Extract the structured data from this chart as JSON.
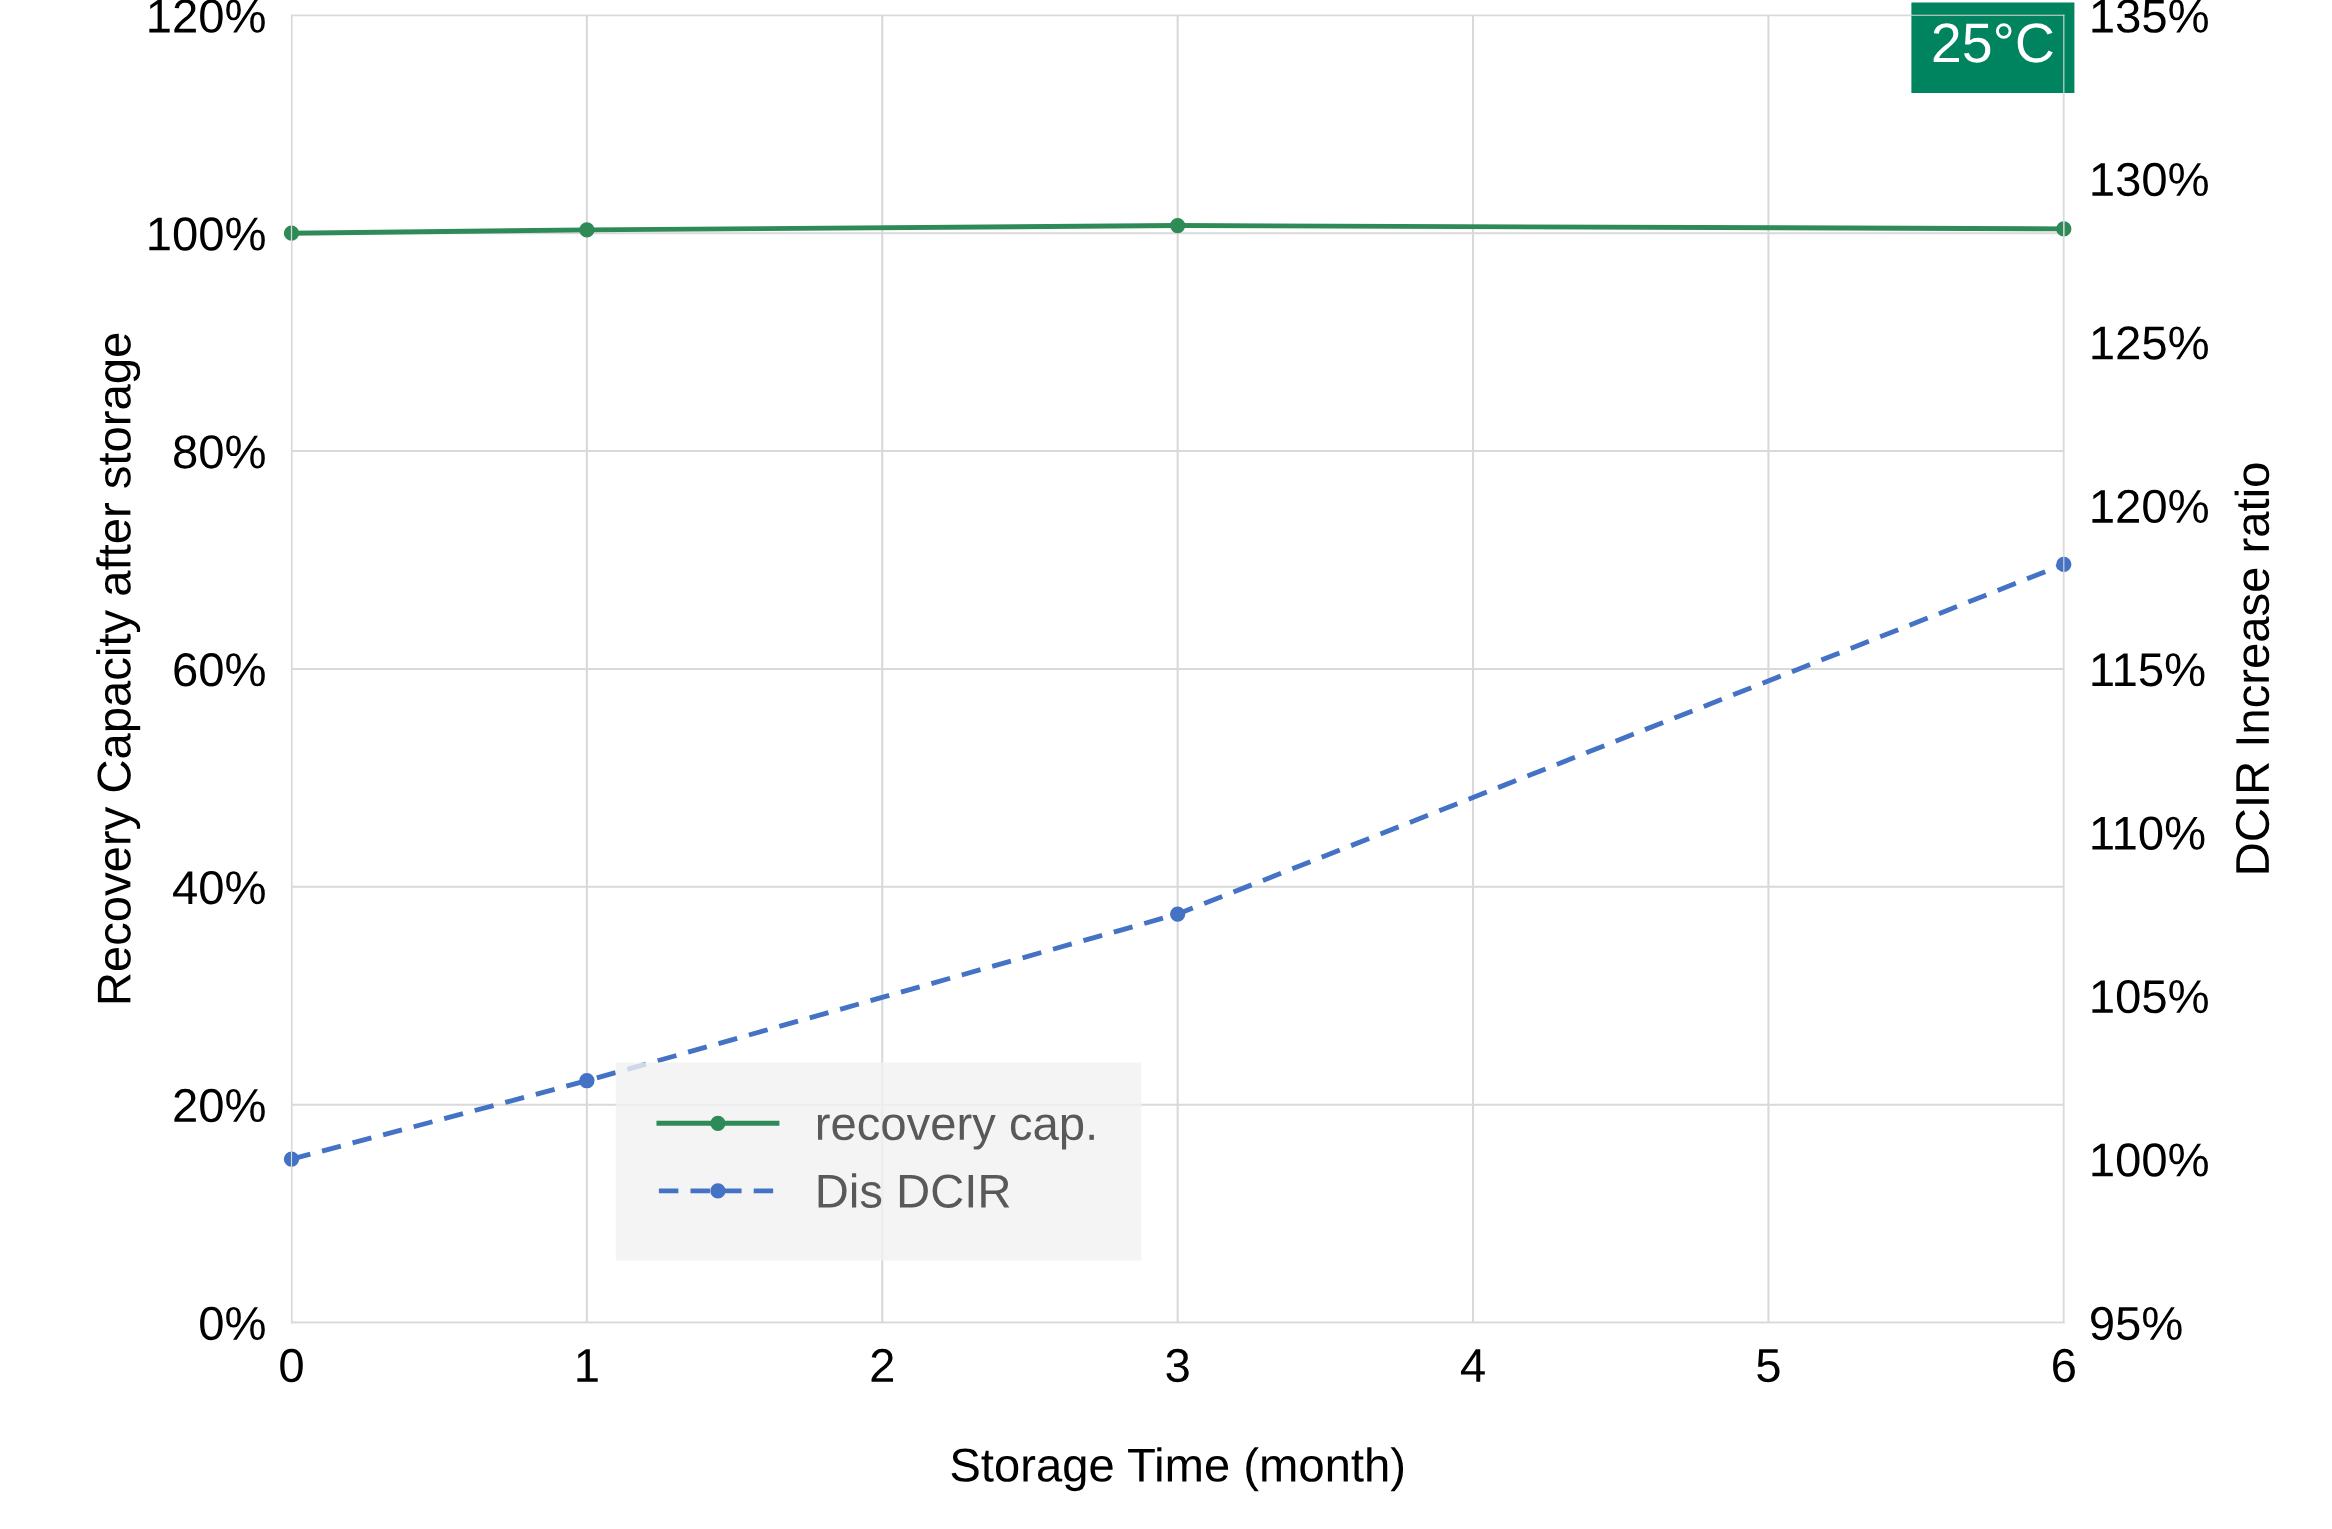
{
  "chart_data": {
    "type": "line",
    "xlabel": "Storage Time (month)",
    "ylabel": "Recovery Capacity after storage",
    "y2label": "DCIR Increase ratio",
    "annotations": [
      "25°C"
    ],
    "x": [
      0,
      1,
      3,
      6
    ],
    "series": [
      {
        "name": "recovery cap.",
        "color": "#2e8b57",
        "values": [
          100,
          100.3,
          100.7,
          100.4
        ],
        "line_style": "solid"
      },
      {
        "name": "Dis DCIR",
        "color": "#4472c4",
        "values": [
          100,
          102.4,
          107.5,
          118.2
        ],
        "axis": "y2",
        "line_style": "dashed"
      }
    ],
    "xlim": [
      0,
      6
    ],
    "xticks": [
      0,
      1,
      2,
      3,
      4,
      5,
      6
    ],
    "ylim": [
      0,
      120
    ],
    "yticks": [
      {
        "value": 0,
        "label": "0%"
      },
      {
        "value": 20,
        "label": "20%"
      },
      {
        "value": 40,
        "label": "40%"
      },
      {
        "value": 60,
        "label": "60%"
      },
      {
        "value": 80,
        "label": "80%"
      },
      {
        "value": 100,
        "label": "100%"
      },
      {
        "value": 120,
        "label": "120%"
      }
    ],
    "y2lim": [
      95,
      135
    ],
    "y2ticks": [
      {
        "value": 95,
        "label": "95%"
      },
      {
        "value": 100,
        "label": "100%"
      },
      {
        "value": 105,
        "label": "105%"
      },
      {
        "value": 110,
        "label": "110%"
      },
      {
        "value": 115,
        "label": "115%"
      },
      {
        "value": 120,
        "label": "120%"
      },
      {
        "value": 125,
        "label": "125%"
      },
      {
        "value": 130,
        "label": "130%"
      },
      {
        "value": 135,
        "label": "135%"
      }
    ],
    "grid": true,
    "legend": "bottom left",
    "marker": "circle"
  }
}
